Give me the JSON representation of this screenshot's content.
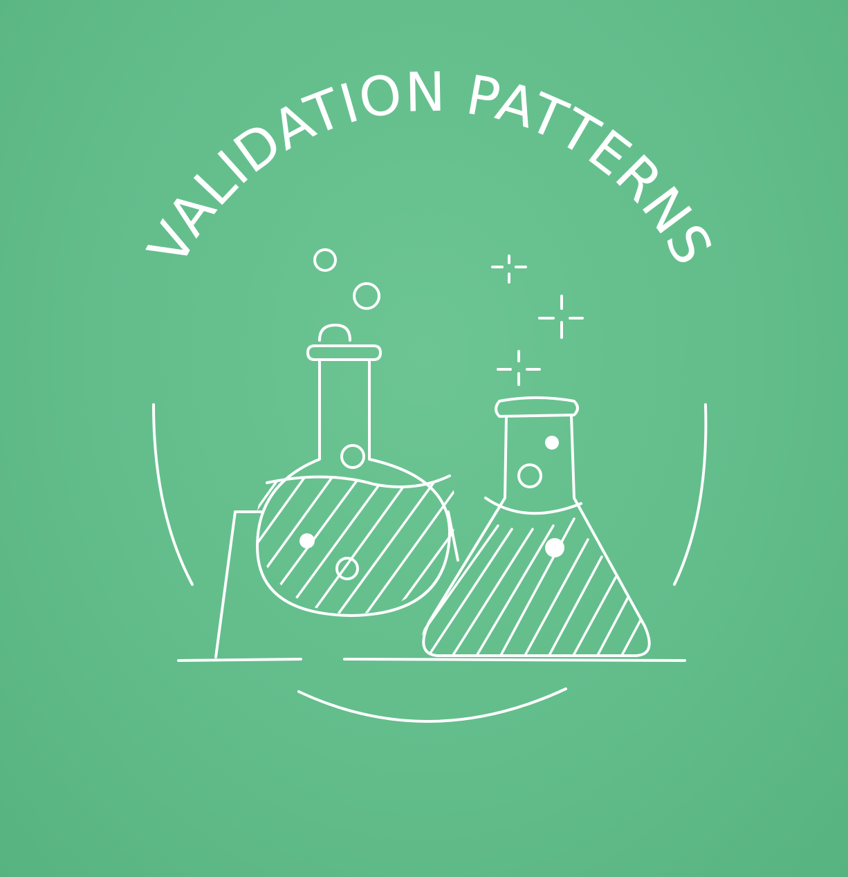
{
  "badge": {
    "title": "VALIDATION PATTERNS",
    "colors": {
      "background": "#62bd8b",
      "ink": "#ffffff"
    },
    "icons": [
      "round-bottom-flask-icon",
      "erlenmeyer-flask-icon",
      "bubble-icon",
      "sparkle-icon"
    ]
  }
}
